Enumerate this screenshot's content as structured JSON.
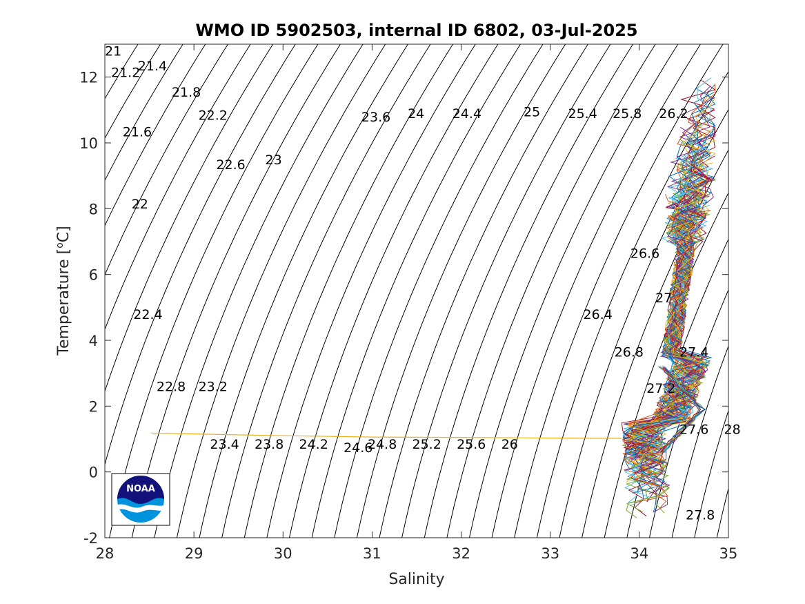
{
  "chart_data": {
    "type": "line",
    "title": "WMO ID 5902503, internal ID 6802, 03-Jul-2025",
    "xlabel": "Salinity",
    "ylabel_prefix": "Temperature [",
    "ylabel_sup": "o",
    "ylabel_suffix": "C]",
    "xlim": [
      28,
      35
    ],
    "ylim": [
      -2,
      13
    ],
    "xticks": [
      "28",
      "29",
      "30",
      "31",
      "32",
      "33",
      "34",
      "35"
    ],
    "yticks": [
      "-2",
      "0",
      "2",
      "4",
      "6",
      "8",
      "10",
      "12"
    ],
    "grid": false,
    "density_contours": {
      "levels": [
        21,
        21.2,
        21.4,
        21.6,
        21.8,
        22,
        22.2,
        22.4,
        22.6,
        22.8,
        23,
        23.2,
        23.4,
        23.6,
        23.8,
        24,
        24.2,
        24.4,
        24.6,
        24.8,
        25,
        25.2,
        25.4,
        25.6,
        25.8,
        26,
        26.2,
        26.4,
        26.6,
        26.8,
        27,
        27.2,
        27.4,
        27.6,
        27.8,
        28
      ],
      "color": "#000000",
      "labels": [
        {
          "text": "21",
          "s": 28.0,
          "t": 12.8
        },
        {
          "text": "21.2",
          "s": 28.07,
          "t": 12.15
        },
        {
          "text": "21.4",
          "s": 28.37,
          "t": 12.35
        },
        {
          "text": "21.6",
          "s": 28.2,
          "t": 10.35
        },
        {
          "text": "21.8",
          "s": 28.75,
          "t": 11.55
        },
        {
          "text": "22",
          "s": 28.3,
          "t": 8.15
        },
        {
          "text": "22.2",
          "s": 29.05,
          "t": 10.85
        },
        {
          "text": "22.4",
          "s": 28.32,
          "t": 4.8
        },
        {
          "text": "22.6",
          "s": 29.25,
          "t": 9.35
        },
        {
          "text": "22.8",
          "s": 28.58,
          "t": 2.6
        },
        {
          "text": "23",
          "s": 29.8,
          "t": 9.5
        },
        {
          "text": "23.2",
          "s": 29.05,
          "t": 2.6
        },
        {
          "text": "23.4",
          "s": 29.18,
          "t": 0.85
        },
        {
          "text": "23.6",
          "s": 30.88,
          "t": 10.8
        },
        {
          "text": "23.8",
          "s": 29.68,
          "t": 0.85
        },
        {
          "text": "24",
          "s": 31.4,
          "t": 10.9
        },
        {
          "text": "24.2",
          "s": 30.18,
          "t": 0.85
        },
        {
          "text": "24.4",
          "s": 31.9,
          "t": 10.9
        },
        {
          "text": "24.6",
          "s": 30.68,
          "t": 0.75
        },
        {
          "text": "24.8",
          "s": 30.95,
          "t": 0.85
        },
        {
          "text": "25",
          "s": 32.7,
          "t": 10.95
        },
        {
          "text": "25.2",
          "s": 31.45,
          "t": 0.85
        },
        {
          "text": "25.4",
          "s": 33.2,
          "t": 10.9
        },
        {
          "text": "25.6",
          "s": 31.95,
          "t": 0.85
        },
        {
          "text": "25.8",
          "s": 33.7,
          "t": 10.9
        },
        {
          "text": "26",
          "s": 32.45,
          "t": 0.85
        },
        {
          "text": "26.2",
          "s": 34.22,
          "t": 10.9
        },
        {
          "text": "26.4",
          "s": 33.37,
          "t": 4.8
        },
        {
          "text": "26.6",
          "s": 33.9,
          "t": 6.65
        },
        {
          "text": "26.8",
          "s": 33.72,
          "t": 3.65
        },
        {
          "text": "27",
          "s": 34.18,
          "t": 5.3
        },
        {
          "text": "27.2",
          "s": 34.08,
          "t": 2.55
        },
        {
          "text": "27.4",
          "s": 34.45,
          "t": 3.65
        },
        {
          "text": "27.6",
          "s": 34.45,
          "t": 1.3
        },
        {
          "text": "27.8",
          "s": 34.52,
          "t": -1.3
        },
        {
          "text": "28",
          "s": 34.95,
          "t": 1.3
        }
      ]
    },
    "profiles": {
      "count_drawn": 60,
      "colors": [
        "#0072bd",
        "#d95319",
        "#edb120",
        "#7e2f8e",
        "#77ac30",
        "#4dbeee",
        "#a2142f"
      ],
      "surface_outlier": {
        "color": "#edb120",
        "s": [
          28.52,
          30.0,
          31.0,
          32.0,
          33.0,
          33.5,
          33.8
        ],
        "t": [
          1.18,
          1.1,
          1.06,
          1.05,
          1.03,
          1.02,
          1.02
        ]
      }
    },
    "logo": {
      "text": "NOAA",
      "colors": [
        "#12127a",
        "#0093dd",
        "#ffffff"
      ]
    }
  }
}
